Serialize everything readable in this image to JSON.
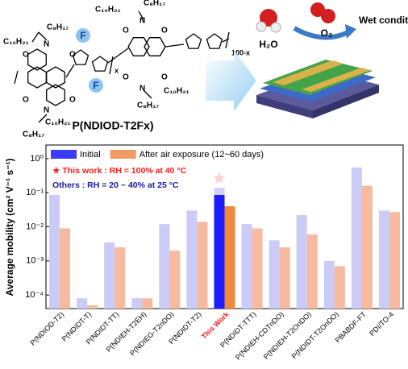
{
  "scheme": {
    "polymer_name": "P(NDIOD-T2Fx)",
    "labels": [
      "C₁₀H₂₁",
      "C₈H₁₇",
      "C₁₀H₂₁",
      "C₈H₁₇",
      "C₁₀H₂₁",
      "C₈H₁₇",
      "C₁₀H₂₁",
      "C₈H₁₇"
    ],
    "atoms": [
      "O",
      "O",
      "O",
      "O",
      "N",
      "N",
      "O",
      "O",
      "O",
      "O",
      "N",
      "N",
      "F",
      "F"
    ],
    "subscripts": [
      "x",
      "100-x"
    ],
    "water": "H₂O",
    "oxygen": "O₂",
    "condition": "Wet condition"
  },
  "chart_data": {
    "type": "bar",
    "log_y": true,
    "ylabel": "Average mobility (cm² V⁻¹ s⁻¹)",
    "annotations": [
      {
        "text": "★ This work : RH = 100% at 40 °C",
        "color": "#ff1a1a"
      },
      {
        "text": "Others : RH = 20 ~ 40% at 25 °C",
        "color": "#1a1aa0"
      }
    ],
    "categories": [
      "P(NDIOD-T2)",
      "P(NDIDT-T)",
      "P(NDIDT-TT)",
      "P(NDIEH-T2EH)",
      "P(NDIEG-T2nDO)",
      "P(NDIDT-T2)",
      "This Work",
      "P(NDIDT-TTT)",
      "P(NDIEH-CDTnDO)",
      "P(NDIEH-T2OnDO)",
      "P(NDIDT-T2OnDO)",
      "PBABDF-FT",
      "PDI/TO-4"
    ],
    "category_colors": [
      "#000",
      "#000",
      "#000",
      "#000",
      "#000",
      "#000",
      "#ff1a1a",
      "#000",
      "#000",
      "#000",
      "#000",
      "#000",
      "#000"
    ],
    "series": [
      {
        "name": "Initial",
        "color": "#3b3bff",
        "bar_colors": [
          "#cbcbf7",
          "#cbcbf7",
          "#cbcbf7",
          "#cbcbf7",
          "#cbcbf7",
          "#cbcbf7",
          "#1c1cff",
          "#cbcbf7",
          "#cbcbf7",
          "#cbcbf7",
          "#cbcbf7",
          "#cbcbf7",
          "#cbcbf7"
        ],
        "values": [
          0.09,
          8e-05,
          0.0035,
          8e-05,
          0.012,
          0.03,
          0.14,
          0.012,
          0.004,
          0.022,
          0.001,
          0.55,
          0.03
        ]
      },
      {
        "name": "After air exposure (12~60 days)",
        "color": "#f29a66",
        "bar_colors": [
          "#f7b9a0",
          "#f7b9a0",
          "#f7b9a0",
          "#f7b9a0",
          "#f7b9a0",
          "#f7b9a0",
          "#f08a3a",
          "#f7b9a0",
          "#f7b9a0",
          "#f7b9a0",
          "#f7b9a0",
          "#f7b9a0",
          "#f7b9a0"
        ],
        "values": [
          0.009,
          5e-05,
          0.0025,
          8e-05,
          0.002,
          0.014,
          0.04,
          0.009,
          0.0025,
          0.006,
          0.0007,
          0.16,
          0.027
        ]
      }
    ],
    "ylim": [
      4e-05,
      2.5
    ],
    "yticks": [
      {
        "value": 0.0001,
        "label": "10⁻⁴"
      },
      {
        "value": 0.001,
        "label": "10⁻³"
      },
      {
        "value": 0.01,
        "label": "10⁻²"
      },
      {
        "value": 0.1,
        "label": "10⁻¹"
      },
      {
        "value": 1,
        "label": "10⁰"
      }
    ],
    "star_index": 6,
    "star_color": "#ff1a1a"
  }
}
